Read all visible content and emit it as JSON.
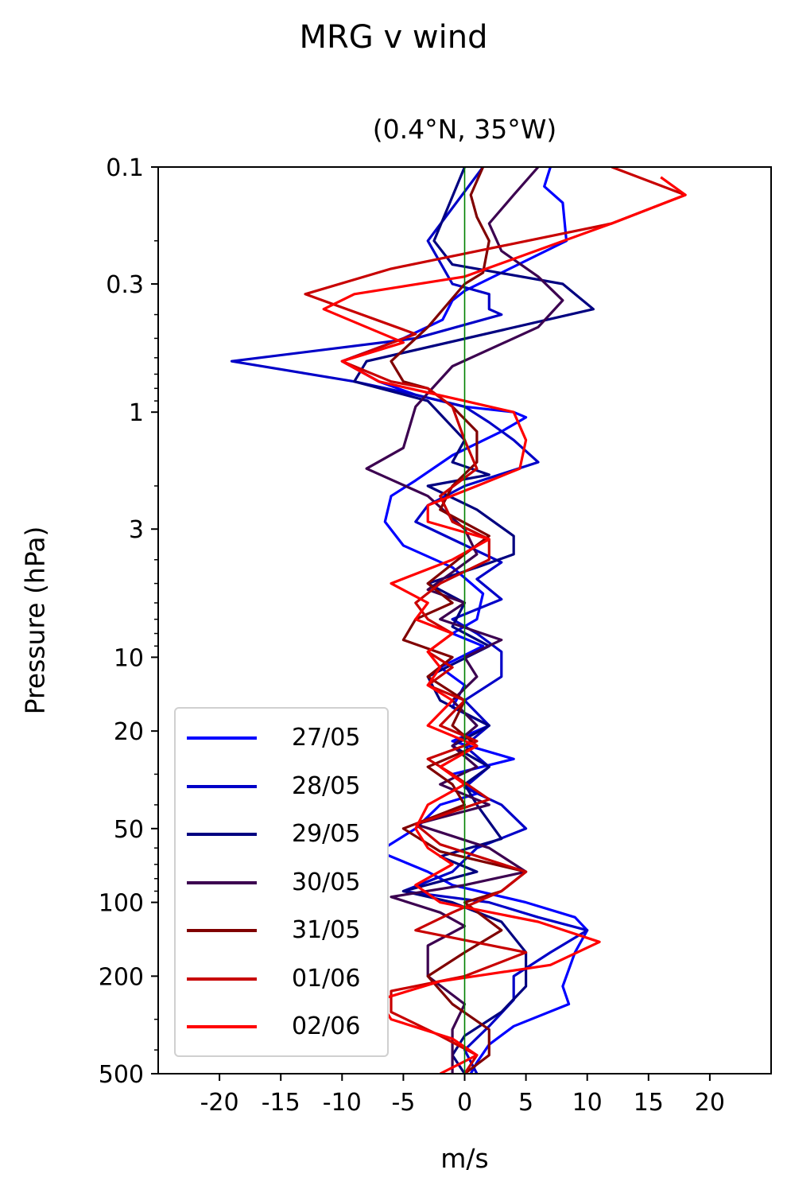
{
  "chart_data": {
    "type": "line",
    "title": "MRG v wind",
    "subtitle": "(0.4°N, 35°W)",
    "xlabel": "m/s",
    "ylabel": "Pressure (hPa)",
    "xlim": [
      -25,
      25
    ],
    "ylim": [
      500,
      0.1
    ],
    "yscale": "log",
    "x_ticks": [
      -20,
      -15,
      -10,
      -5,
      0,
      5,
      10,
      15,
      20
    ],
    "y_ticks": [
      0.1,
      0.3,
      1,
      3,
      10,
      20,
      50,
      100,
      200,
      500
    ],
    "grid": false,
    "legend_position": "lower-left",
    "reference_line": {
      "x": 0,
      "color": "#008000"
    },
    "series": [
      {
        "name": "27/05",
        "color": "#0000ff",
        "points": [
          [
            7,
            0.1
          ],
          [
            6.5,
            0.12
          ],
          [
            8,
            0.14
          ],
          [
            8.3,
            0.2
          ],
          [
            0,
            0.32
          ],
          [
            -1,
            0.35
          ],
          [
            -1.8,
            0.42
          ],
          [
            -5,
            0.5
          ],
          [
            -10,
            0.62
          ],
          [
            -7,
            0.75
          ],
          [
            -4,
            0.85
          ],
          [
            0,
            0.95
          ],
          [
            4,
            1.0
          ],
          [
            5,
            1.05
          ],
          [
            3,
            1.2
          ],
          [
            -1,
            1.5
          ],
          [
            -4,
            1.9
          ],
          [
            -6,
            2.2
          ],
          [
            -6.5,
            2.8
          ],
          [
            -5,
            3.5
          ],
          [
            -1,
            4.3
          ],
          [
            1.5,
            5.5
          ],
          [
            1,
            7
          ],
          [
            -1,
            8
          ],
          [
            1.5,
            9
          ],
          [
            -2,
            11
          ],
          [
            0,
            13
          ],
          [
            -1,
            16
          ],
          [
            2,
            19
          ],
          [
            -1,
            22
          ],
          [
            4,
            26
          ],
          [
            -1,
            30
          ],
          [
            1,
            36
          ],
          [
            -2,
            40
          ],
          [
            -4,
            50
          ],
          [
            -7,
            62
          ],
          [
            -3,
            75
          ],
          [
            -1,
            85
          ],
          [
            5,
            100
          ],
          [
            9,
            115
          ],
          [
            10,
            130
          ],
          [
            9,
            160
          ],
          [
            8,
            220
          ],
          [
            8.5,
            260
          ],
          [
            4,
            320
          ],
          [
            2,
            380
          ],
          [
            1,
            450
          ],
          [
            0.5,
            500
          ]
        ]
      },
      {
        "name": "28/05",
        "color": "#0000c8",
        "points": [
          [
            1.5,
            0.1
          ],
          [
            -3,
            0.2
          ],
          [
            -1,
            0.3
          ],
          [
            2,
            0.33
          ],
          [
            2,
            0.38
          ],
          [
            3,
            0.4
          ],
          [
            -4,
            0.5
          ],
          [
            -19,
            0.62
          ],
          [
            -9,
            0.75
          ],
          [
            -4,
            0.85
          ],
          [
            0,
            0.95
          ],
          [
            2,
            1.1
          ],
          [
            4,
            1.3
          ],
          [
            6,
            1.6
          ],
          [
            0,
            2.0
          ],
          [
            -3,
            2.4
          ],
          [
            -4,
            2.8
          ],
          [
            -1,
            3.3
          ],
          [
            3,
            4.1
          ],
          [
            1,
            4.8
          ],
          [
            3,
            5.8
          ],
          [
            -1,
            7
          ],
          [
            1,
            8
          ],
          [
            3,
            9.5
          ],
          [
            3,
            12
          ],
          [
            0,
            15
          ],
          [
            2,
            19
          ],
          [
            0,
            23
          ],
          [
            2,
            28
          ],
          [
            0,
            34
          ],
          [
            3,
            40
          ],
          [
            5,
            50
          ],
          [
            1,
            60
          ],
          [
            -1,
            75
          ],
          [
            -5,
            90
          ],
          [
            2,
            100
          ],
          [
            6,
            115
          ],
          [
            10,
            130
          ],
          [
            7,
            160
          ],
          [
            4,
            200
          ],
          [
            4,
            250
          ],
          [
            2,
            320
          ],
          [
            0,
            400
          ],
          [
            1,
            500
          ]
        ]
      },
      {
        "name": "29/05",
        "color": "#000080",
        "points": [
          [
            0,
            0.1
          ],
          [
            -2.5,
            0.2
          ],
          [
            -1,
            0.25
          ],
          [
            8,
            0.3
          ],
          [
            10.5,
            0.38
          ],
          [
            -8,
            0.62
          ],
          [
            -9,
            0.75
          ],
          [
            -3,
            0.9
          ],
          [
            0,
            1.3
          ],
          [
            -1,
            1.6
          ],
          [
            2,
            1.8
          ],
          [
            -3,
            2.0
          ],
          [
            1,
            2.5
          ],
          [
            4,
            3.2
          ],
          [
            4,
            3.8
          ],
          [
            1,
            4.3
          ],
          [
            -3,
            5
          ],
          [
            0,
            6
          ],
          [
            -1,
            7.5
          ],
          [
            2,
            9
          ],
          [
            -3,
            12
          ],
          [
            -2,
            15
          ],
          [
            2,
            19
          ],
          [
            -1,
            23
          ],
          [
            2,
            28
          ],
          [
            0,
            33
          ],
          [
            1,
            40
          ],
          [
            3,
            55
          ],
          [
            -2,
            65
          ],
          [
            1,
            75
          ],
          [
            -5,
            90
          ],
          [
            -1,
            100
          ],
          [
            3,
            120
          ],
          [
            5,
            160
          ],
          [
            5,
            220
          ],
          [
            3,
            280
          ],
          [
            0,
            350
          ],
          [
            -1,
            420
          ],
          [
            0,
            500
          ]
        ]
      },
      {
        "name": "30/05",
        "color": "#3c0050",
        "points": [
          [
            6,
            0.1
          ],
          [
            4,
            0.13
          ],
          [
            2,
            0.17
          ],
          [
            3,
            0.22
          ],
          [
            6,
            0.28
          ],
          [
            8,
            0.35
          ],
          [
            6,
            0.45
          ],
          [
            -1,
            0.65
          ],
          [
            -4,
            0.95
          ],
          [
            -5,
            1.4
          ],
          [
            -8,
            1.7
          ],
          [
            -3,
            2.2
          ],
          [
            0,
            3.0
          ],
          [
            1,
            3.8
          ],
          [
            -1,
            4.5
          ],
          [
            -3,
            5.3
          ],
          [
            0,
            6
          ],
          [
            -2,
            7
          ],
          [
            3,
            8.5
          ],
          [
            0,
            10
          ],
          [
            1,
            12
          ],
          [
            -1,
            15
          ],
          [
            1,
            19
          ],
          [
            -1,
            23
          ],
          [
            1,
            28
          ],
          [
            -2,
            33
          ],
          [
            2,
            40
          ],
          [
            -4,
            48
          ],
          [
            2,
            60
          ],
          [
            5,
            75
          ],
          [
            0,
            85
          ],
          [
            -6,
            95
          ],
          [
            -2,
            110
          ],
          [
            0,
            125
          ],
          [
            -3,
            150
          ],
          [
            -3,
            200
          ],
          [
            0,
            260
          ],
          [
            -1,
            330
          ],
          [
            -1,
            420
          ],
          [
            -1,
            500
          ]
        ]
      },
      {
        "name": "31/05",
        "color": "#800000",
        "points": [
          [
            1.5,
            0.1
          ],
          [
            0.5,
            0.13
          ],
          [
            1,
            0.16
          ],
          [
            2,
            0.2
          ],
          [
            1.5,
            0.27
          ],
          [
            0,
            0.3
          ],
          [
            -3,
            0.45
          ],
          [
            -6,
            0.62
          ],
          [
            -5,
            0.75
          ],
          [
            -3,
            0.8
          ],
          [
            -1,
            0.95
          ],
          [
            1,
            1.2
          ],
          [
            1,
            1.6
          ],
          [
            -1,
            2.0
          ],
          [
            -2,
            2.5
          ],
          [
            2,
            3.2
          ],
          [
            0,
            3.8
          ],
          [
            -3,
            5
          ],
          [
            -1,
            6
          ],
          [
            -4,
            7
          ],
          [
            -5,
            8.5
          ],
          [
            -1,
            10
          ],
          [
            -3,
            12
          ],
          [
            0,
            15
          ],
          [
            -1,
            19
          ],
          [
            1,
            23
          ],
          [
            -3,
            28
          ],
          [
            -1,
            33
          ],
          [
            0,
            40
          ],
          [
            -5,
            50
          ],
          [
            -2,
            62
          ],
          [
            5,
            75
          ],
          [
            3,
            90
          ],
          [
            0,
            100
          ],
          [
            3,
            130
          ],
          [
            0,
            160
          ],
          [
            -3,
            200
          ],
          [
            -1,
            260
          ],
          [
            2,
            330
          ],
          [
            2,
            420
          ],
          [
            0,
            500
          ]
        ]
      },
      {
        "name": "01/06",
        "color": "#c80000",
        "points": [
          [
            12,
            0.1
          ],
          [
            18,
            0.13
          ],
          [
            12,
            0.17
          ],
          [
            -6,
            0.26
          ],
          [
            -13,
            0.33
          ],
          [
            -4,
            0.48
          ],
          [
            -10,
            0.62
          ],
          [
            -6,
            0.75
          ],
          [
            -3,
            0.8
          ],
          [
            -1,
            0.95
          ],
          [
            0,
            1.3
          ],
          [
            1,
            1.7
          ],
          [
            -2,
            2.2
          ],
          [
            -1,
            2.8
          ],
          [
            2,
            3.3
          ],
          [
            2,
            4.0
          ],
          [
            -2,
            5
          ],
          [
            -4,
            6
          ],
          [
            -3,
            7
          ],
          [
            -1,
            8
          ],
          [
            -3,
            9.5
          ],
          [
            -1,
            11
          ],
          [
            -3,
            13
          ],
          [
            0,
            15
          ],
          [
            -2,
            19
          ],
          [
            1,
            22
          ],
          [
            -3,
            26
          ],
          [
            -1,
            30
          ],
          [
            2,
            38
          ],
          [
            -4,
            48
          ],
          [
            -2,
            58
          ],
          [
            5,
            75
          ],
          [
            3,
            90
          ],
          [
            -1,
            110
          ],
          [
            -4,
            130
          ],
          [
            5,
            160
          ],
          [
            0,
            200
          ],
          [
            -6,
            230
          ],
          [
            -6,
            280
          ],
          [
            -2,
            350
          ],
          [
            1,
            420
          ],
          [
            0,
            500
          ]
        ]
      },
      {
        "name": "02/06",
        "color": "#ff0000",
        "points": [
          [
            16,
            0.11
          ],
          [
            18,
            0.13
          ],
          [
            12,
            0.17
          ],
          [
            0,
            0.28
          ],
          [
            -9,
            0.33
          ],
          [
            -11.5,
            0.38
          ],
          [
            -8,
            0.45
          ],
          [
            -5,
            0.52
          ],
          [
            -10,
            0.62
          ],
          [
            -7,
            0.75
          ],
          [
            0,
            0.9
          ],
          [
            4,
            1.0
          ],
          [
            5,
            1.3
          ],
          [
            4.5,
            1.7
          ],
          [
            1,
            2.0
          ],
          [
            -3,
            2.4
          ],
          [
            -3,
            2.8
          ],
          [
            2,
            3.3
          ],
          [
            -1,
            4.0
          ],
          [
            -6,
            5
          ],
          [
            -3,
            6
          ],
          [
            -4,
            7
          ],
          [
            -1,
            8
          ],
          [
            -3,
            9.5
          ],
          [
            -2,
            11
          ],
          [
            -3,
            13
          ],
          [
            -1,
            15
          ],
          [
            -3,
            19
          ],
          [
            1,
            23
          ],
          [
            -2,
            28
          ],
          [
            0,
            33
          ],
          [
            -3,
            40
          ],
          [
            -4,
            50
          ],
          [
            -3,
            60
          ],
          [
            -1,
            70
          ],
          [
            -4,
            85
          ],
          [
            -2,
            100
          ],
          [
            6,
            120
          ],
          [
            11,
            145
          ],
          [
            7,
            180
          ],
          [
            -2,
            210
          ],
          [
            -7,
            250
          ],
          [
            -6,
            300
          ],
          [
            -1,
            360
          ],
          [
            1,
            420
          ],
          [
            -2,
            500
          ]
        ]
      }
    ]
  }
}
